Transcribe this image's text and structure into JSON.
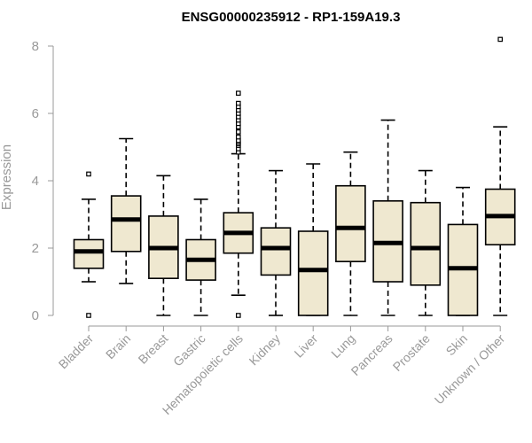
{
  "chart_data": {
    "type": "boxplot",
    "title": "ENSG00000235912 - RP1-159A19.3",
    "ylabel": "Expression",
    "xlabel": "",
    "ylim": [
      0,
      8
    ],
    "yticks": [
      0,
      2,
      4,
      6,
      8
    ],
    "grid": false,
    "legend": "none",
    "box_fill": "#efe8d0",
    "categories": [
      "Bladder",
      "Brain",
      "Breast",
      "Gastric",
      "Hematopoietic cells",
      "Kidney",
      "Liver",
      "Lung",
      "Pancreas",
      "Prostate",
      "Skin",
      "Unknown / Other"
    ],
    "boxes": [
      {
        "whisker_low": 1.0,
        "q1": 1.4,
        "median": 1.9,
        "q3": 2.25,
        "whisker_high": 3.45,
        "outliers": [
          0.0,
          4.2
        ]
      },
      {
        "whisker_low": 0.95,
        "q1": 1.9,
        "median": 2.85,
        "q3": 3.55,
        "whisker_high": 5.25,
        "outliers": []
      },
      {
        "whisker_low": 0.0,
        "q1": 1.1,
        "median": 2.0,
        "q3": 2.95,
        "whisker_high": 4.15,
        "outliers": []
      },
      {
        "whisker_low": 0.0,
        "q1": 1.05,
        "median": 1.65,
        "q3": 2.25,
        "whisker_high": 3.45,
        "outliers": []
      },
      {
        "whisker_low": 0.6,
        "q1": 1.85,
        "median": 2.45,
        "q3": 3.05,
        "whisker_high": 4.8,
        "outliers": [
          0.0,
          4.85,
          4.95,
          5.05,
          5.1,
          5.15,
          5.2,
          5.3,
          5.45,
          5.6,
          5.7,
          5.8,
          5.9,
          6.0,
          6.1,
          6.2,
          6.3,
          6.6
        ]
      },
      {
        "whisker_low": 0.0,
        "q1": 1.2,
        "median": 2.0,
        "q3": 2.6,
        "whisker_high": 4.3,
        "outliers": []
      },
      {
        "whisker_low": 0.0,
        "q1": 0.0,
        "median": 1.35,
        "q3": 2.5,
        "whisker_high": 4.5,
        "outliers": []
      },
      {
        "whisker_low": 0.0,
        "q1": 1.6,
        "median": 2.6,
        "q3": 3.85,
        "whisker_high": 4.85,
        "outliers": []
      },
      {
        "whisker_low": 0.0,
        "q1": 1.0,
        "median": 2.15,
        "q3": 3.4,
        "whisker_high": 5.8,
        "outliers": []
      },
      {
        "whisker_low": 0.0,
        "q1": 0.9,
        "median": 2.0,
        "q3": 3.35,
        "whisker_high": 4.3,
        "outliers": []
      },
      {
        "whisker_low": 0.0,
        "q1": 0.0,
        "median": 1.4,
        "q3": 2.7,
        "whisker_high": 3.8,
        "outliers": []
      },
      {
        "whisker_low": 0.0,
        "q1": 2.1,
        "median": 2.95,
        "q3": 3.75,
        "whisker_high": 5.6,
        "outliers": [
          8.2
        ]
      }
    ]
  }
}
